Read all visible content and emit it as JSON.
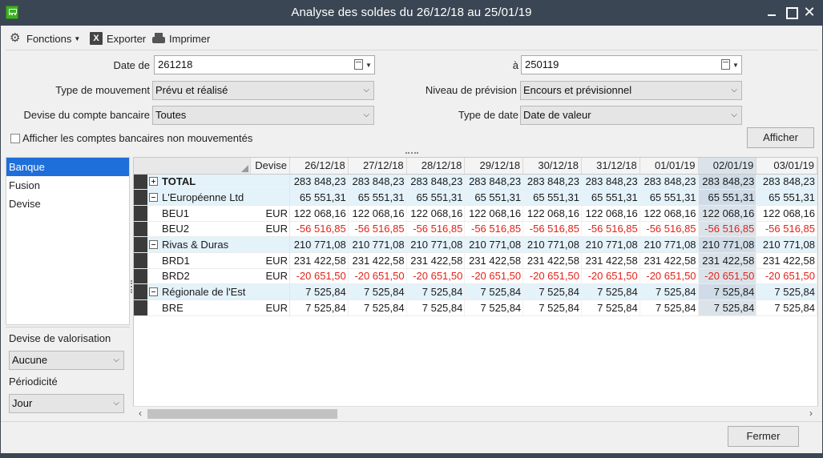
{
  "window": {
    "title": "Analyse des soldes du 26/12/18 au 25/01/19"
  },
  "menu": {
    "fonctions": "Fonctions",
    "exporter": "Exporter",
    "imprimer": "Imprimer",
    "excel_glyph": "X"
  },
  "filters": {
    "date_de_label": "Date de",
    "date_de_value": "261218",
    "date_a_label": "à",
    "date_a_value": "250119",
    "type_mouvement_label": "Type de mouvement",
    "type_mouvement_value": "Prévu et réalisé",
    "niveau_prevision_label": "Niveau de prévision",
    "niveau_prevision_value": "Encours et prévisionnel",
    "devise_compte_label": "Devise du compte bancaire",
    "devise_compte_value": "Toutes",
    "type_date_label": "Type de date",
    "type_date_value": "Date de valeur",
    "afficher_non_mouvementes_label": "Afficher les comptes bancaires non mouvementés",
    "afficher_button": "Afficher"
  },
  "left_panel": {
    "items": [
      "Banque",
      "Fusion",
      "Devise"
    ],
    "devise_valorisation_label": "Devise de valorisation",
    "devise_valorisation_value": "Aucune",
    "periodicite_label": "Périodicité",
    "periodicite_value": "Jour"
  },
  "grid": {
    "devise_header": "Devise",
    "dates": [
      "26/12/18",
      "27/12/18",
      "28/12/18",
      "29/12/18",
      "30/12/18",
      "31/12/18",
      "01/01/19",
      "02/01/19",
      "03/01/19"
    ],
    "rows": [
      {
        "type": "total",
        "name": "TOTAL",
        "devise": "",
        "values": [
          "283 848,23",
          "283 848,23",
          "283 848,23",
          "283 848,23",
          "283 848,23",
          "283 848,23",
          "283 848,23",
          "283 848,23",
          "283 848,23"
        ]
      },
      {
        "type": "group",
        "name": "L'Européenne Ltd",
        "devise": "",
        "values": [
          "65 551,31",
          "65 551,31",
          "65 551,31",
          "65 551,31",
          "65 551,31",
          "65 551,31",
          "65 551,31",
          "65 551,31",
          "65 551,31"
        ]
      },
      {
        "type": "account",
        "name": "BEU1",
        "devise": "EUR",
        "values": [
          "122 068,16",
          "122 068,16",
          "122 068,16",
          "122 068,16",
          "122 068,16",
          "122 068,16",
          "122 068,16",
          "122 068,16",
          "122 068,16"
        ]
      },
      {
        "type": "account",
        "name": "BEU2",
        "devise": "EUR",
        "negative": true,
        "values": [
          "-56 516,85",
          "-56 516,85",
          "-56 516,85",
          "-56 516,85",
          "-56 516,85",
          "-56 516,85",
          "-56 516,85",
          "-56 516,85",
          "-56 516,85"
        ]
      },
      {
        "type": "group",
        "name": "Rivas & Duras",
        "devise": "",
        "values": [
          "210 771,08",
          "210 771,08",
          "210 771,08",
          "210 771,08",
          "210 771,08",
          "210 771,08",
          "210 771,08",
          "210 771,08",
          "210 771,08"
        ]
      },
      {
        "type": "account",
        "name": "BRD1",
        "devise": "EUR",
        "values": [
          "231 422,58",
          "231 422,58",
          "231 422,58",
          "231 422,58",
          "231 422,58",
          "231 422,58",
          "231 422,58",
          "231 422,58",
          "231 422,58"
        ]
      },
      {
        "type": "account",
        "name": "BRD2",
        "devise": "EUR",
        "negative": true,
        "values": [
          "-20 651,50",
          "-20 651,50",
          "-20 651,50",
          "-20 651,50",
          "-20 651,50",
          "-20 651,50",
          "-20 651,50",
          "-20 651,50",
          "-20 651,50"
        ]
      },
      {
        "type": "group",
        "name": "Régionale de l'Est",
        "devise": "",
        "values": [
          "7 525,84",
          "7 525,84",
          "7 525,84",
          "7 525,84",
          "7 525,84",
          "7 525,84",
          "7 525,84",
          "7 525,84",
          "7 525,84"
        ]
      },
      {
        "type": "account",
        "name": "BRE",
        "devise": "EUR",
        "values": [
          "7 525,84",
          "7 525,84",
          "7 525,84",
          "7 525,84",
          "7 525,84",
          "7 525,84",
          "7 525,84",
          "7 525,84",
          "7 525,84"
        ]
      }
    ],
    "highlight_column_index": 7
  },
  "footer": {
    "fermer_button": "Fermer"
  },
  "colors": {
    "titlebar": "#3a4654",
    "selection": "#1e6fd9",
    "negative": "#e2231a",
    "group_row": "#e4f2fa"
  }
}
